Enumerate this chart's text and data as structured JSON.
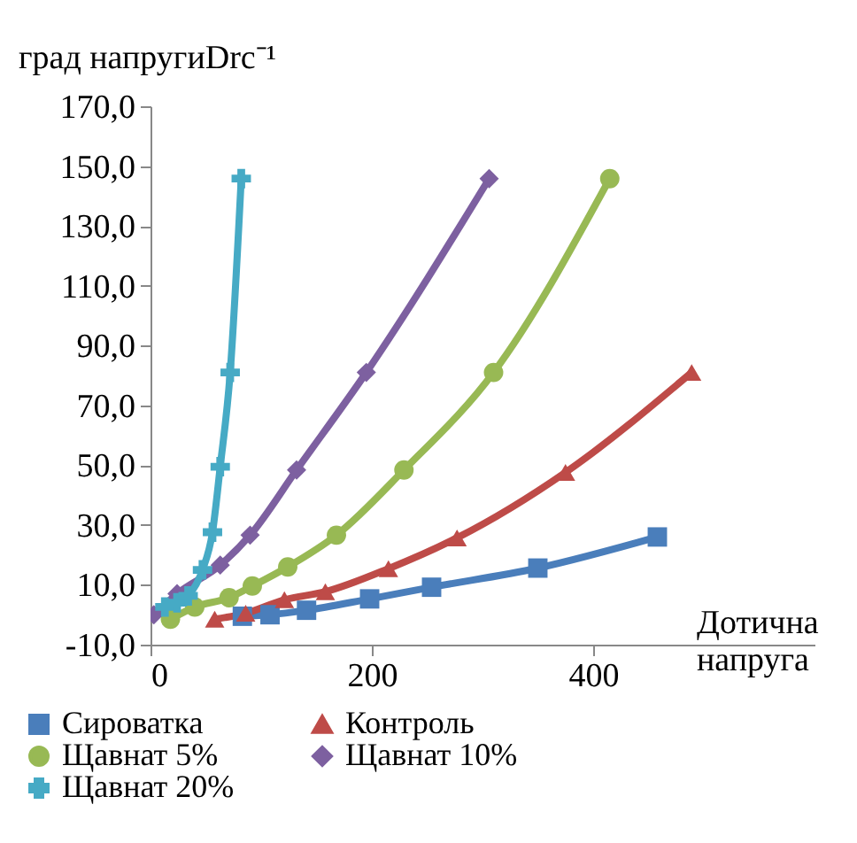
{
  "chart_data": {
    "type": "line",
    "ylabel": "град напругиDrc⁻¹",
    "xlabel": "Дотична напруга",
    "xlim": [
      0,
      600
    ],
    "xticks": [
      0,
      200,
      400
    ],
    "ylim": [
      -10,
      170
    ],
    "yticks": [
      {
        "value": -10,
        "label": "-10,0"
      },
      {
        "value": 10,
        "label": "10,0"
      },
      {
        "value": 30,
        "label": "30,0"
      },
      {
        "value": 50,
        "label": "50,0"
      },
      {
        "value": 70,
        "label": "70,0"
      },
      {
        "value": 90,
        "label": "90,0"
      },
      {
        "value": 110,
        "label": "110,0"
      },
      {
        "value": 130,
        "label": "130,0"
      },
      {
        "value": 150,
        "label": "150,0"
      },
      {
        "value": 170,
        "label": "170,0"
      }
    ],
    "grid": false,
    "legend": "bottom",
    "series": [
      {
        "name": "Сироватка",
        "color": "#4a7ebb",
        "marker": "square",
        "x": [
          83,
          108,
          141,
          198,
          254,
          350,
          458
        ],
        "values": [
          -0.5,
          0,
          1.5,
          5.3,
          9.2,
          15.6,
          26
        ]
      },
      {
        "name": "Контроль",
        "color": "#be4b48",
        "marker": "triangle",
        "x": [
          58,
          86,
          121,
          158,
          215,
          277,
          375,
          489
        ],
        "values": [
          -1.5,
          0.5,
          5,
          7.7,
          15.4,
          25.7,
          47.6,
          81
        ]
      },
      {
        "name": "Щавнат 5%",
        "color": "#98b954",
        "marker": "circle",
        "x": [
          18,
          40,
          71,
          92,
          124,
          168,
          229,
          310,
          415
        ],
        "values": [
          -1.5,
          2.6,
          5.7,
          9.6,
          16,
          26.6,
          48.4,
          81,
          145.8
        ]
      },
      {
        "name": "Щавнат 10%",
        "color": "#7d60a0",
        "marker": "diamond",
        "x": [
          3,
          24,
          63,
          90,
          132,
          195,
          306
        ],
        "values": [
          0,
          7,
          16.6,
          26.6,
          48.4,
          81,
          145.8
        ]
      },
      {
        "name": "Щавнат 20%",
        "color": "#46aac5",
        "marker": "cross",
        "x": [
          13,
          24,
          34,
          47,
          56,
          63,
          72,
          82
        ],
        "values": [
          2.6,
          4,
          6.3,
          15,
          27.6,
          49.5,
          81,
          145.8
        ]
      }
    ]
  }
}
